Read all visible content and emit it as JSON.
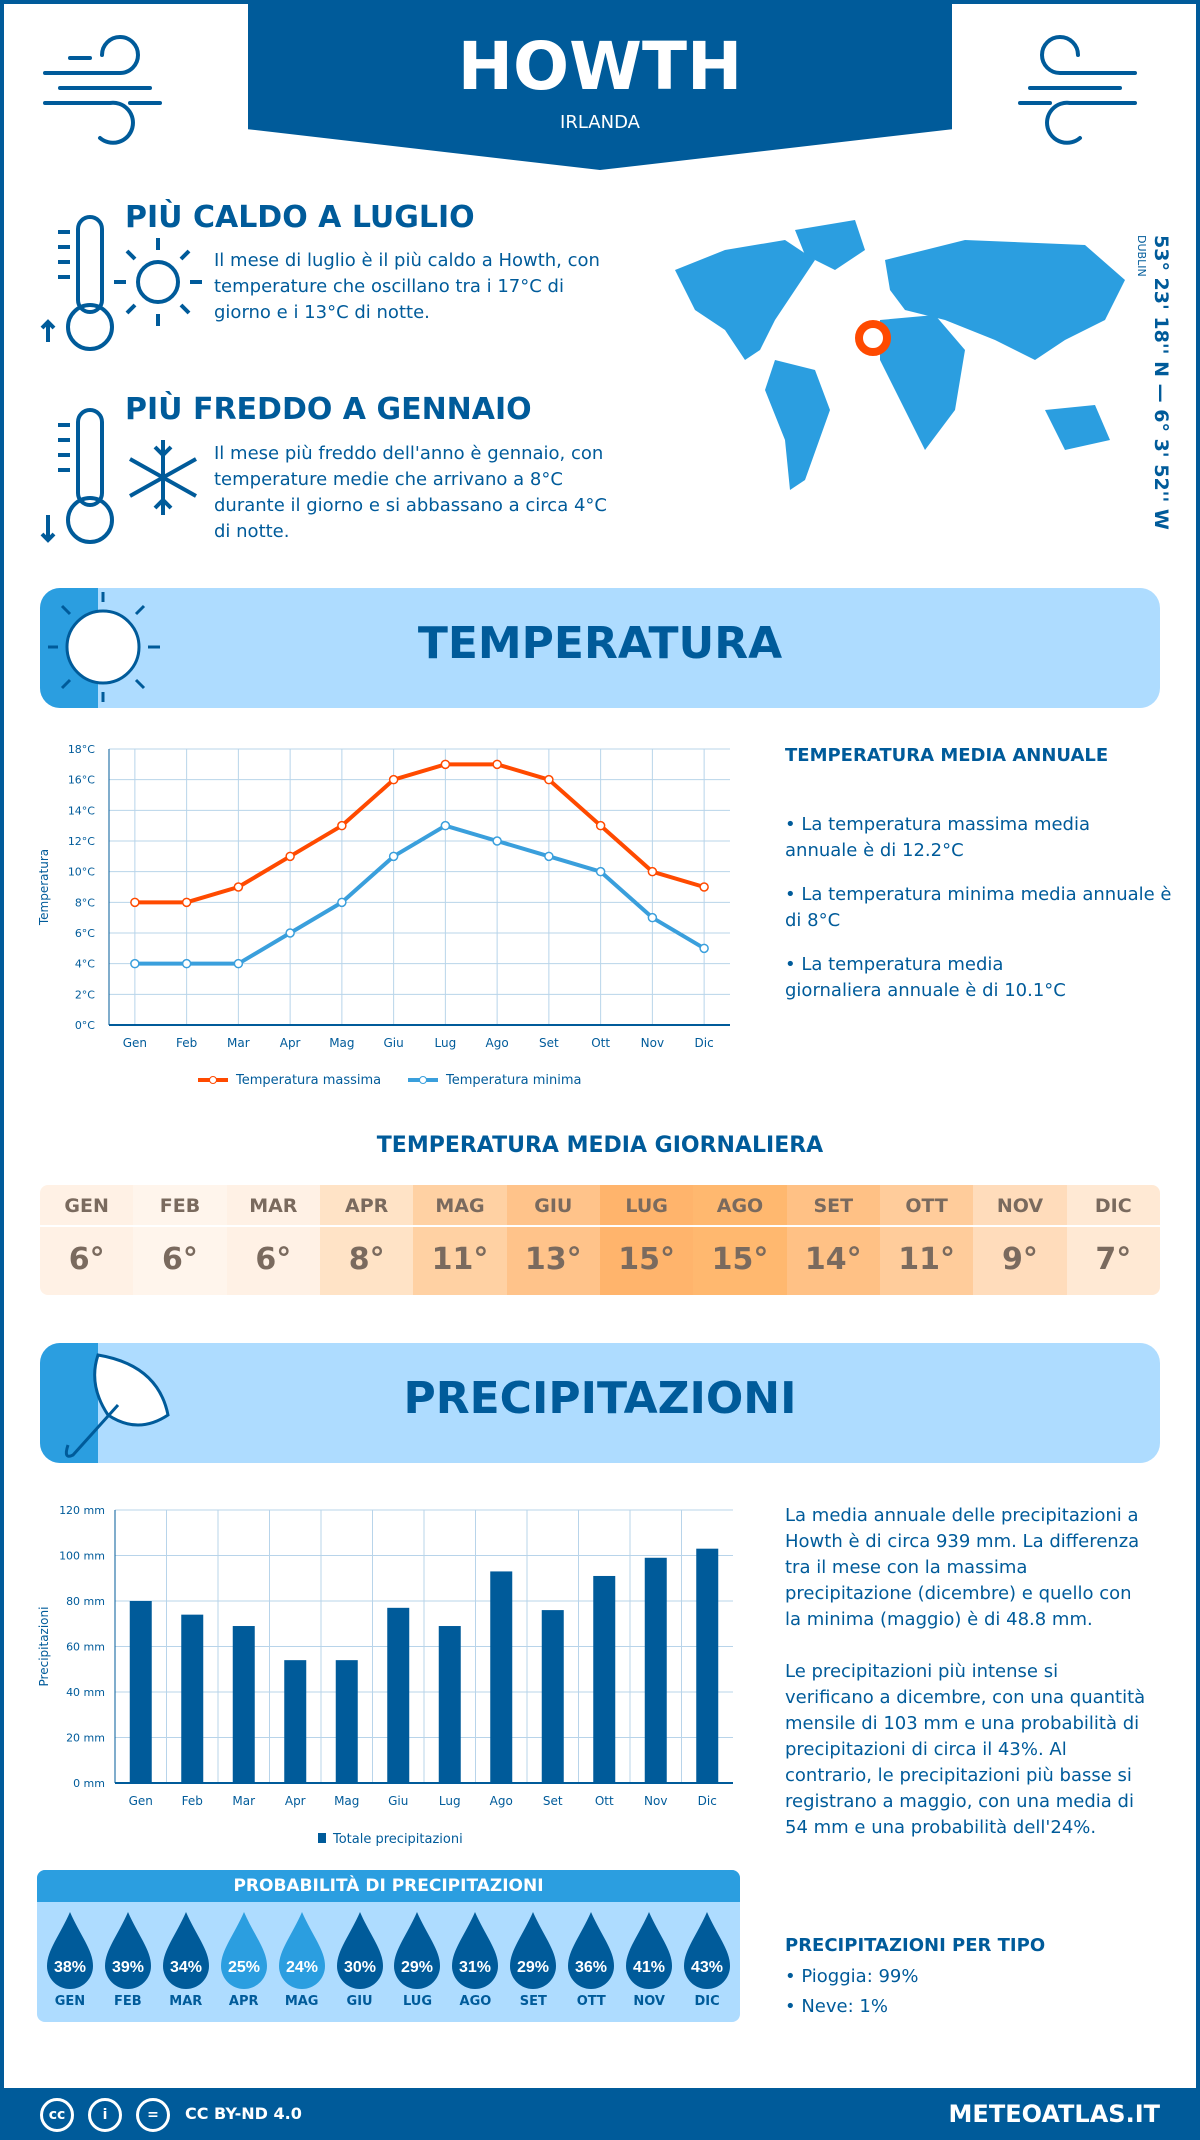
{
  "header": {
    "title": "HOWTH",
    "country": "IRLANDA"
  },
  "warm": {
    "title": "PIÙ CALDO A LUGLIO",
    "text": "Il mese di luglio è il più caldo a Howth, con temperature che oscillano tra i 17°C di giorno e i 13°C di notte."
  },
  "cold": {
    "title": "PIÙ FREDDO A GENNAIO",
    "text": "Il mese più freddo dell'anno è gennaio, con temperature medie che arrivano a 8°C durante il giorno e si abbassano a circa 4°C di notte."
  },
  "map": {
    "city": "DUBLIN",
    "coords": "53° 23' 18'' N — 6° 3' 52'' W",
    "marker_color": "#ff4a00"
  },
  "temp_section": {
    "title": "TEMPERATURA"
  },
  "temp_summary": {
    "title": "TEMPERATURA MEDIA ANNUALE",
    "items": [
      "• La temperatura massima media annuale è di 12.2°C",
      "• La temperatura minima media annuale è di 8°C",
      "• La temperatura media giornaliera annuale è di 10.1°C"
    ]
  },
  "daily": {
    "title": "TEMPERATURA MEDIA GIORNALIERA",
    "months": [
      "GEN",
      "FEB",
      "MAR",
      "APR",
      "MAG",
      "GIU",
      "LUG",
      "AGO",
      "SET",
      "OTT",
      "NOV",
      "DIC"
    ],
    "values": [
      "6°",
      "6°",
      "6°",
      "8°",
      "11°",
      "13°",
      "15°",
      "15°",
      "14°",
      "11°",
      "9°",
      "7°"
    ],
    "colors": [
      "#fff1e5",
      "#fff5ec",
      "#fff1e5",
      "#ffe3c6",
      "#ffd1a3",
      "#ffc38a",
      "#ffb46c",
      "#ffb86f",
      "#ffc185",
      "#ffcc9b",
      "#ffdcbb",
      "#ffe9d4"
    ]
  },
  "precip_section": {
    "title": "PRECIPITAZIONI"
  },
  "precip_text": [
    "La media annuale delle precipitazioni a Howth è di circa 939 mm. La differenza tra il mese con la massima precipitazione (dicembre) e quello con la minima (maggio) è di 48.8 mm.",
    "Le precipitazioni più intense si verificano a dicembre, con una quantità mensile di 103 mm e una probabilità di precipitazioni di circa il 43%. Al contrario, le precipitazioni più basse si registrano a maggio, con una media di 54 mm e una probabilità dell'24%."
  ],
  "probability": {
    "title": "PROBABILITÀ DI PRECIPITAZIONI",
    "months": [
      "GEN",
      "FEB",
      "MAR",
      "APR",
      "MAG",
      "GIU",
      "LUG",
      "AGO",
      "SET",
      "OTT",
      "NOV",
      "DIC"
    ],
    "values": [
      "38%",
      "39%",
      "34%",
      "25%",
      "24%",
      "30%",
      "29%",
      "31%",
      "29%",
      "36%",
      "41%",
      "43%"
    ]
  },
  "types": {
    "title": "PRECIPITAZIONI PER TIPO",
    "items": [
      "• Pioggia: 99%",
      "• Neve: 1%"
    ]
  },
  "footer": {
    "license": "CC BY-ND 4.0",
    "site": "METEOATLAS.IT"
  },
  "colors": {
    "dark": "#005b9a",
    "mid": "#2b9ee0",
    "light": "#aedcff",
    "max": "#ff4a00",
    "min": "#3a9fdc"
  },
  "chart_data": [
    {
      "type": "line",
      "categories": [
        "Gen",
        "Feb",
        "Mar",
        "Apr",
        "Mag",
        "Giu",
        "Lug",
        "Ago",
        "Set",
        "Ott",
        "Nov",
        "Dic"
      ],
      "ylabel": "Temperatura",
      "ylim": [
        0,
        18
      ],
      "yticks": [
        "0°C",
        "2°C",
        "4°C",
        "6°C",
        "8°C",
        "10°C",
        "12°C",
        "14°C",
        "16°C",
        "18°C"
      ],
      "grid": true,
      "legend": "bottom",
      "series": [
        {
          "name": "Temperatura massima",
          "values": [
            8,
            8,
            9,
            11,
            13,
            16,
            17,
            17,
            16,
            13,
            10,
            9
          ]
        },
        {
          "name": "Temperatura minima",
          "values": [
            4,
            4,
            4,
            6,
            8,
            11,
            13,
            12,
            11,
            10,
            7,
            5
          ]
        }
      ]
    },
    {
      "type": "bar",
      "categories": [
        "Gen",
        "Feb",
        "Mar",
        "Apr",
        "Mag",
        "Giu",
        "Lug",
        "Ago",
        "Set",
        "Ott",
        "Nov",
        "Dic"
      ],
      "ylabel": "Precipitazioni",
      "ylim": [
        0,
        120
      ],
      "yticks": [
        "0 mm",
        "20 mm",
        "40 mm",
        "60 mm",
        "80 mm",
        "100 mm",
        "120 mm"
      ],
      "grid": true,
      "legend": "bottom",
      "series": [
        {
          "name": "Totale precipitazioni",
          "values": [
            80,
            74,
            69,
            54,
            54,
            77,
            69,
            93,
            76,
            91,
            99,
            103
          ]
        }
      ]
    }
  ]
}
